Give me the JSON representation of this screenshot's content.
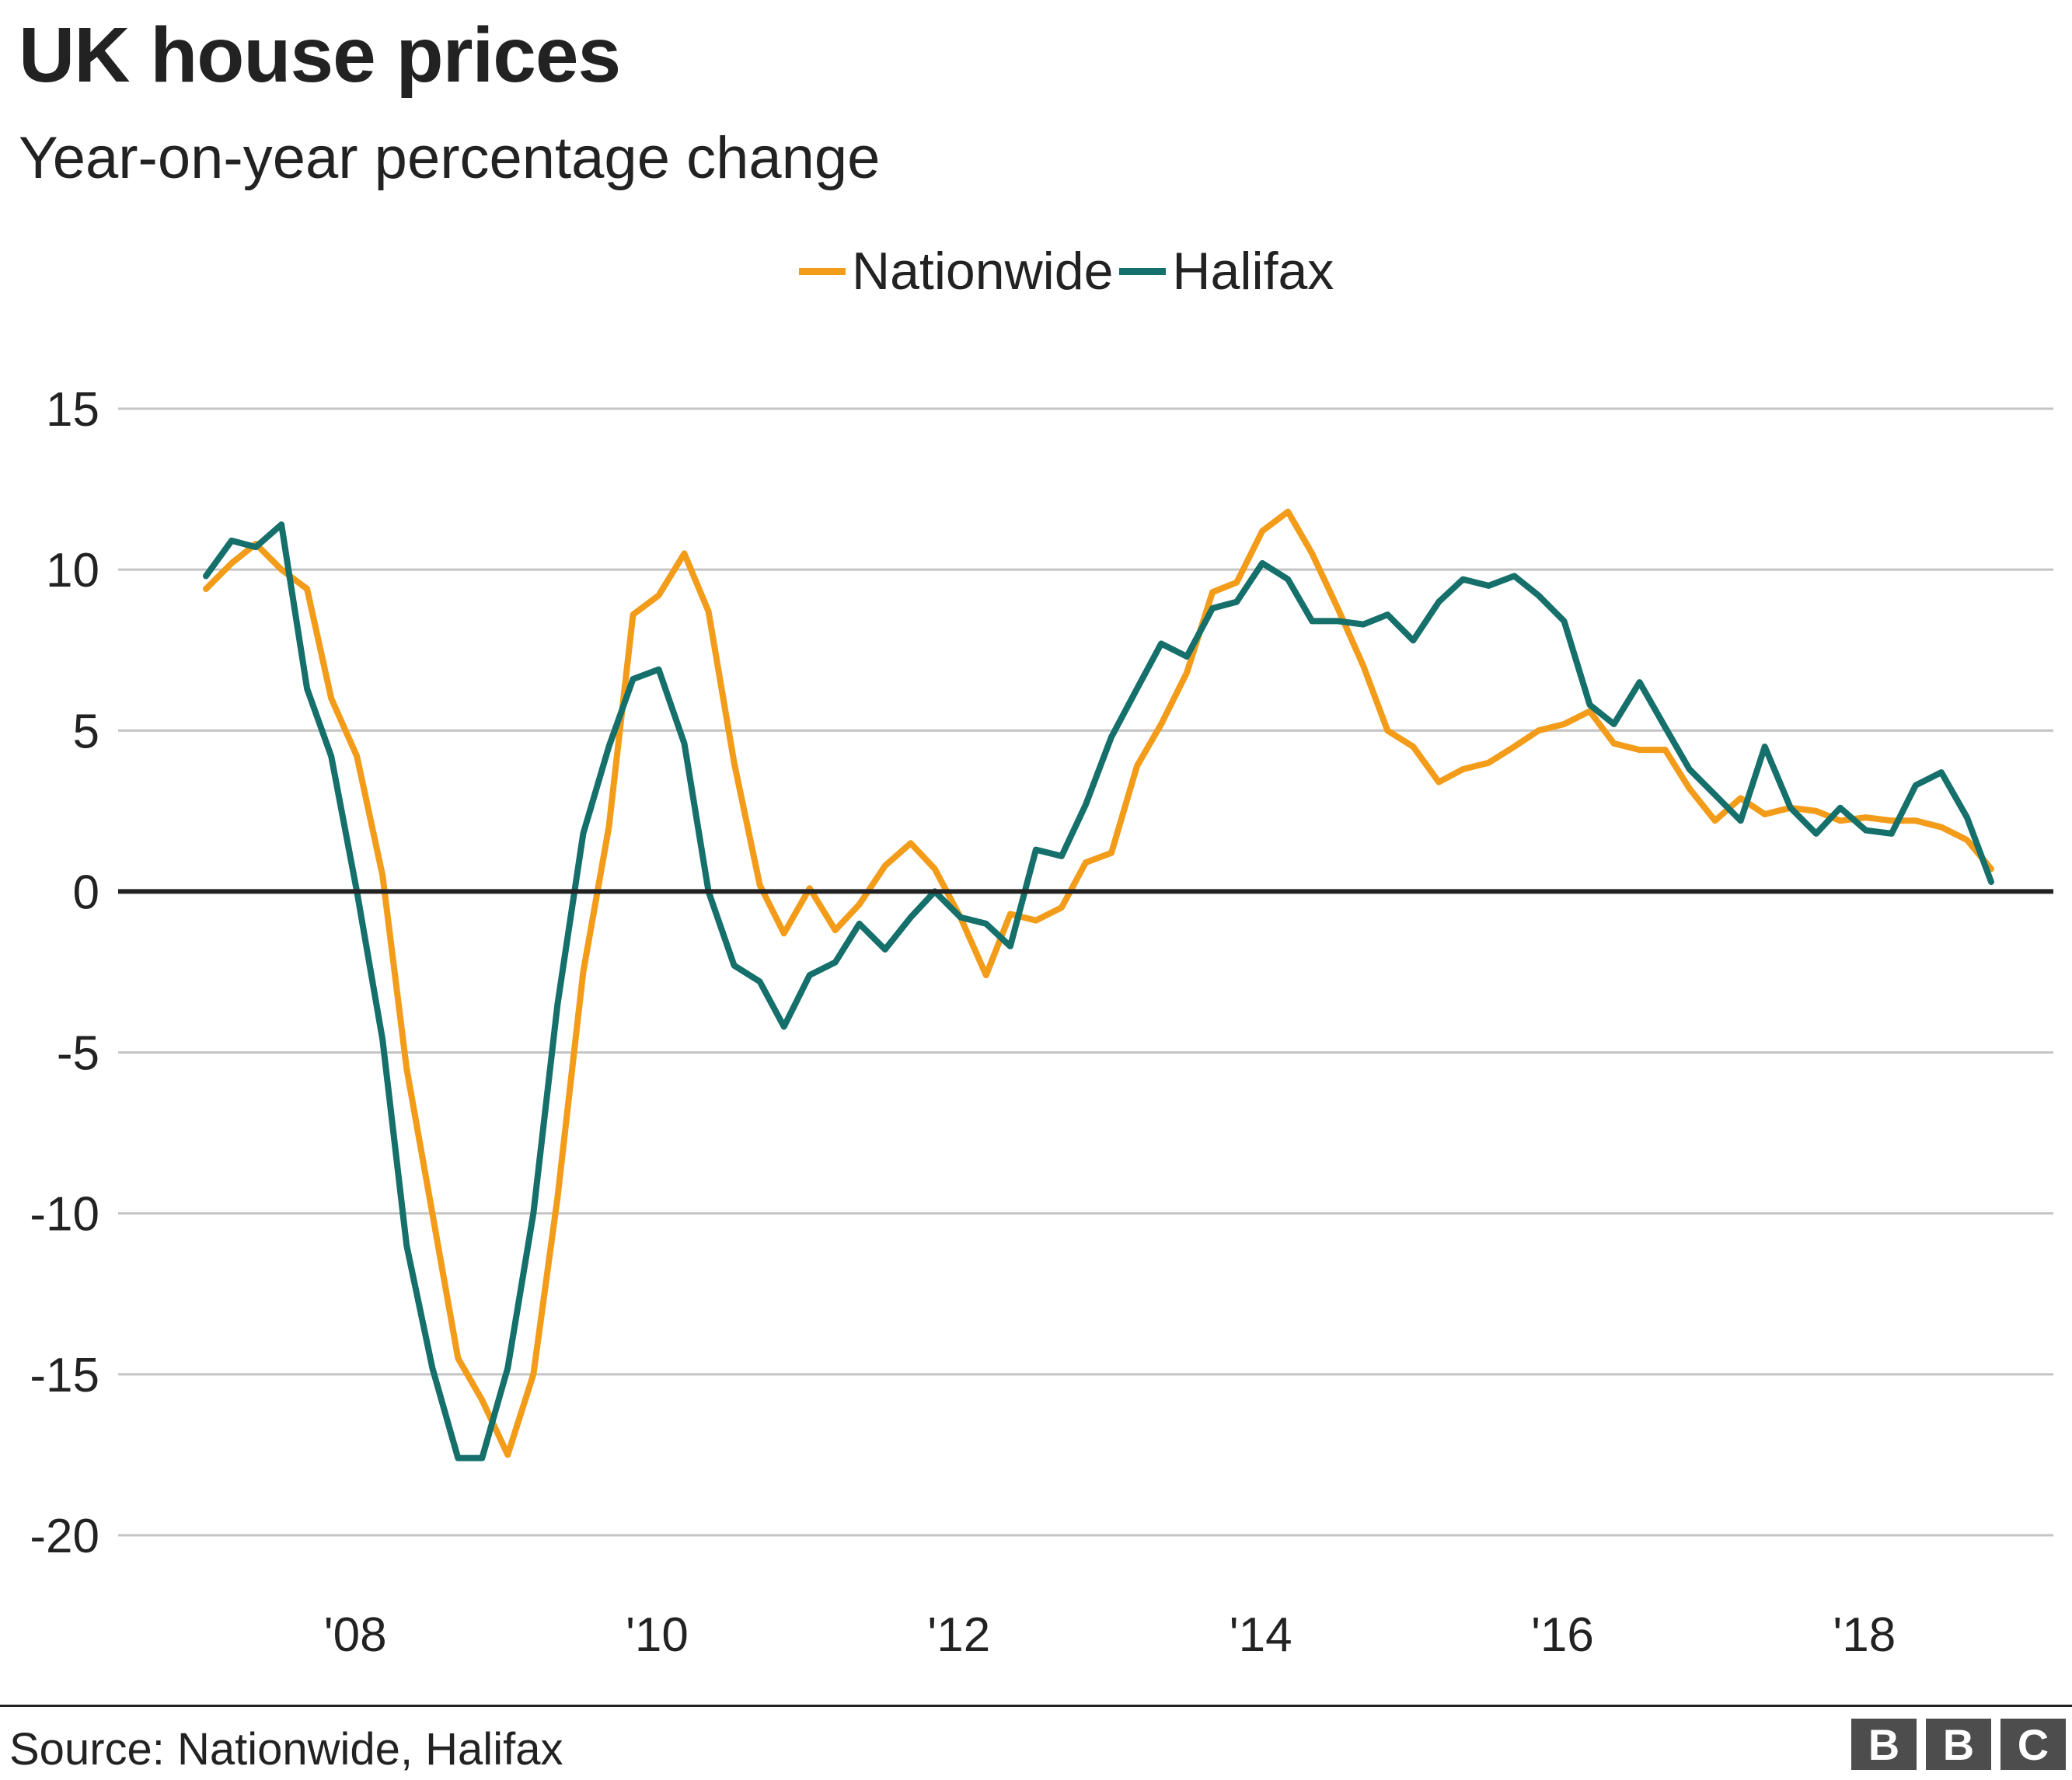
{
  "title": "UK house prices",
  "subtitle": "Year-on-year percentage change",
  "source": "Source: Nationwide, Halifax",
  "logo": [
    "B",
    "B",
    "C"
  ],
  "colors": {
    "nationwide": "#f39c1a",
    "halifax": "#156f6a",
    "grid": "#c4c4c4",
    "zero": "#222222",
    "text": "#222222"
  },
  "chart_data": {
    "type": "line",
    "title": "UK house prices",
    "subtitle": "Year-on-year percentage change",
    "legend": [
      "Nationwide",
      "Halifax"
    ],
    "legend_position": "top-center",
    "grid": "horizontal",
    "ylim": [
      -20,
      15
    ],
    "yticks": [
      15,
      10,
      5,
      0,
      -5,
      -10,
      -15,
      -20
    ],
    "ytick_labels": [
      "15",
      "10",
      "5",
      "0",
      "-5",
      "-10",
      "-15",
      "-20"
    ],
    "xlim": [
      2007.0,
      2019.5
    ],
    "xticks": [
      2008,
      2010,
      2012,
      2014,
      2016,
      2018
    ],
    "xtick_labels": [
      "'08",
      "'10",
      "'12",
      "'14",
      "'16",
      "'18"
    ],
    "series": [
      {
        "name": "Nationwide",
        "color": "#f39c1a",
        "x": [
          2007.0,
          2007.17,
          2007.33,
          2007.5,
          2007.67,
          2007.83,
          2008.0,
          2008.17,
          2008.33,
          2008.5,
          2008.67,
          2008.83,
          2009.0,
          2009.17,
          2009.33,
          2009.5,
          2009.67,
          2009.83,
          2010.0,
          2010.17,
          2010.33,
          2010.5,
          2010.67,
          2010.83,
          2011.0,
          2011.17,
          2011.33,
          2011.5,
          2011.67,
          2011.83,
          2012.0,
          2012.17,
          2012.33,
          2012.5,
          2012.67,
          2012.83,
          2013.0,
          2013.17,
          2013.33,
          2013.5,
          2013.67,
          2013.83,
          2014.0,
          2014.17,
          2014.33,
          2014.5,
          2014.67,
          2014.83,
          2015.0,
          2015.17,
          2015.33,
          2015.5,
          2015.67,
          2015.83,
          2016.0,
          2016.17,
          2016.33,
          2016.5,
          2016.67,
          2016.83,
          2017.0,
          2017.17,
          2017.33,
          2017.5,
          2017.67,
          2017.83,
          2018.0,
          2018.17,
          2018.33,
          2018.5,
          2018.67,
          2018.83
        ],
        "values": [
          9.4,
          10.2,
          10.8,
          10.0,
          9.4,
          6.0,
          4.2,
          0.5,
          -5.5,
          -10.0,
          -14.5,
          -15.8,
          -17.5,
          -15.0,
          -9.5,
          -2.5,
          2.0,
          8.6,
          9.2,
          10.5,
          8.7,
          4.0,
          0.2,
          -1.3,
          0.1,
          -1.2,
          -0.4,
          0.8,
          1.5,
          0.7,
          -0.8,
          -2.6,
          -0.7,
          -0.9,
          -0.5,
          0.9,
          1.2,
          3.9,
          5.2,
          6.8,
          9.3,
          9.6,
          11.2,
          11.8,
          10.5,
          8.8,
          7.0,
          5.0,
          4.5,
          3.4,
          3.8,
          4.0,
          4.5,
          5.0,
          5.2,
          5.6,
          4.6,
          4.4,
          4.4,
          3.2,
          2.2,
          2.9,
          2.4,
          2.6,
          2.5,
          2.2,
          2.3,
          2.2,
          2.2,
          2.0,
          1.6,
          0.7
        ]
      },
      {
        "name": "Halifax",
        "color": "#156f6a",
        "x": [
          2007.0,
          2007.17,
          2007.33,
          2007.5,
          2007.67,
          2007.83,
          2008.0,
          2008.17,
          2008.33,
          2008.5,
          2008.67,
          2008.83,
          2009.0,
          2009.17,
          2009.33,
          2009.5,
          2009.67,
          2009.83,
          2010.0,
          2010.17,
          2010.33,
          2010.5,
          2010.67,
          2010.83,
          2011.0,
          2011.17,
          2011.33,
          2011.5,
          2011.67,
          2011.83,
          2012.0,
          2012.17,
          2012.33,
          2012.5,
          2012.67,
          2012.83,
          2013.0,
          2013.17,
          2013.33,
          2013.5,
          2013.67,
          2013.83,
          2014.0,
          2014.17,
          2014.33,
          2014.5,
          2014.67,
          2014.83,
          2015.0,
          2015.17,
          2015.33,
          2015.5,
          2015.67,
          2015.83,
          2016.0,
          2016.17,
          2016.33,
          2016.5,
          2016.67,
          2016.83,
          2017.0,
          2017.17,
          2017.33,
          2017.5,
          2017.67,
          2017.83,
          2018.0,
          2018.17,
          2018.33,
          2018.5,
          2018.67,
          2018.83
        ],
        "values": [
          9.8,
          10.9,
          10.7,
          11.4,
          6.3,
          4.2,
          0.0,
          -4.6,
          -11.0,
          -14.8,
          -17.6,
          -17.6,
          -14.8,
          -10.0,
          -3.5,
          1.8,
          4.5,
          6.6,
          6.9,
          4.6,
          0.0,
          -2.3,
          -2.8,
          -4.2,
          -2.6,
          -2.2,
          -1.0,
          -1.8,
          -0.8,
          0.0,
          -0.8,
          -1.0,
          -1.7,
          1.3,
          1.1,
          2.7,
          4.8,
          6.3,
          7.7,
          7.3,
          8.8,
          9.0,
          10.2,
          9.7,
          8.4,
          8.4,
          8.3,
          8.6,
          7.8,
          9.0,
          9.7,
          9.5,
          9.8,
          9.2,
          8.4,
          5.8,
          5.2,
          6.5,
          5.1,
          3.8,
          3.0,
          2.2,
          4.5,
          2.6,
          1.8,
          2.6,
          1.9,
          1.8,
          3.3,
          3.7,
          2.3,
          0.3
        ]
      }
    ]
  }
}
